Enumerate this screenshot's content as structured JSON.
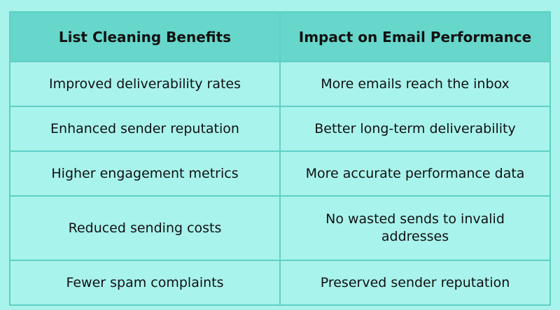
{
  "table": {
    "headers": [
      "List Cleaning Benefits",
      "Impact on Email Performance"
    ],
    "rows": [
      [
        "Improved deliverability rates",
        "More emails reach the inbox"
      ],
      [
        "Enhanced sender reputation",
        "Better long-term deliverability"
      ],
      [
        "Higher engagement metrics",
        "More accurate performance data"
      ],
      [
        "Reduced sending costs",
        "No wasted sends to invalid addresses"
      ],
      [
        "Fewer spam complaints",
        "Preserved sender reputation"
      ]
    ]
  },
  "colors": {
    "background": "#a8f3ec",
    "header_background": "#67d6cb",
    "border": "#5fd0c4",
    "text": "#111111"
  }
}
